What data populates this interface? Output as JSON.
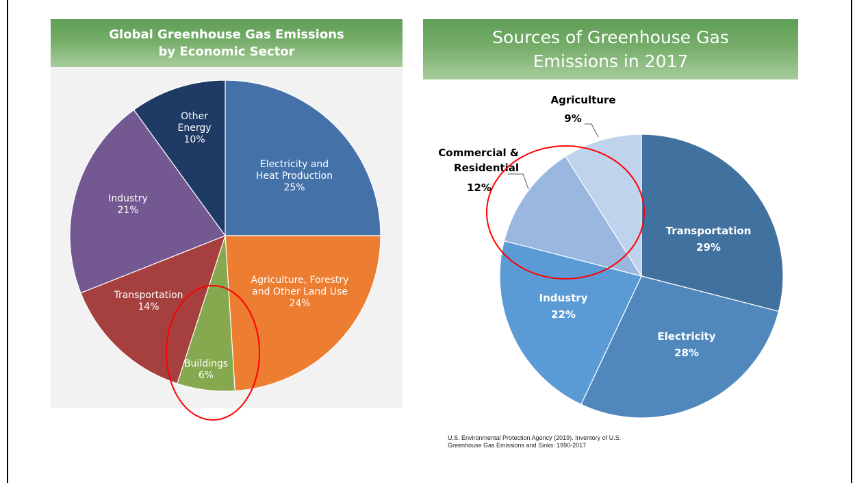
{
  "left_chart_title": [
    "Global Greenhouse Gas Emissions",
    "by Economic Sector"
  ],
  "right_chart_title": [
    "Sources of Greenhouse Gas",
    "Emissions in 2017"
  ],
  "citation": [
    "U.S. Environmental Protection Agency (2019). Inventory of U.S.",
    "Greenhouse Gas Emissions and Sinks: 1990-2017"
  ],
  "colors": {
    "title_banner": "#70a966",
    "highlight_circle": "#ff0000"
  },
  "chart_data": [
    {
      "type": "pie",
      "title": "Global Greenhouse Gas Emissions by Economic Sector",
      "slices": [
        {
          "label": [
            "Electricity and",
            "Heat Production"
          ],
          "pct": "25%",
          "value": 25,
          "color": "#4371a8"
        },
        {
          "label": [
            "Agriculture, Forestry",
            "and Other Land Use"
          ],
          "pct": "24%",
          "value": 24,
          "color": "#ed7d31"
        },
        {
          "label": [
            "Buildings"
          ],
          "pct": "6%",
          "value": 6,
          "color": "#86a84e"
        },
        {
          "label": [
            "Transportation"
          ],
          "pct": "14%",
          "value": 14,
          "color": "#a5403e"
        },
        {
          "label": [
            "Industry"
          ],
          "pct": "21%",
          "value": 21,
          "color": "#735891"
        },
        {
          "label": [
            "Other",
            "Energy"
          ],
          "pct": "10%",
          "value": 10,
          "color": "#1f3a64"
        }
      ]
    },
    {
      "type": "pie",
      "title": "Sources of Greenhouse Gas Emissions in 2017",
      "slices": [
        {
          "label": [
            "Transportation"
          ],
          "pct": "29%",
          "value": 29,
          "color": "#41719f"
        },
        {
          "label": [
            "Electricity"
          ],
          "pct": "28%",
          "value": 28,
          "color": "#5088be"
        },
        {
          "label": [
            "Industry"
          ],
          "pct": "22%",
          "value": 22,
          "color": "#5b9bd5"
        },
        {
          "label": [
            "Commercial &",
            "Residential"
          ],
          "pct": "12%",
          "value": 12,
          "color": "#9ab8df"
        },
        {
          "label": [
            "Agriculture"
          ],
          "pct": "9%",
          "value": 9,
          "color": "#c0d3ec"
        }
      ]
    }
  ]
}
